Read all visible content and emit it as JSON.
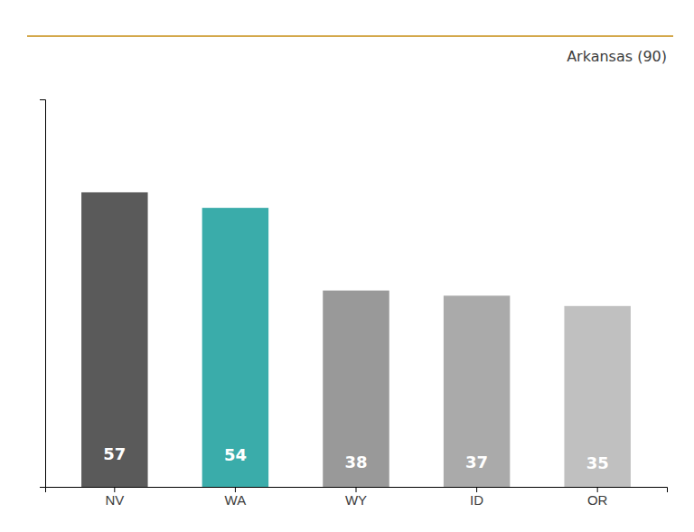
{
  "chart_data": {
    "type": "bar",
    "categories": [
      "NV",
      "WA",
      "WY",
      "ID",
      "OR"
    ],
    "values": [
      57,
      54,
      38,
      37,
      35
    ],
    "colors": [
      "#5a5a5a",
      "#3aacaa",
      "#999999",
      "#aaaaaa",
      "#c0c0c0"
    ],
    "ylim": [
      0,
      75
    ],
    "data_labels": true,
    "tick_labels": "x",
    "annotation": "Arkansas (90)"
  }
}
